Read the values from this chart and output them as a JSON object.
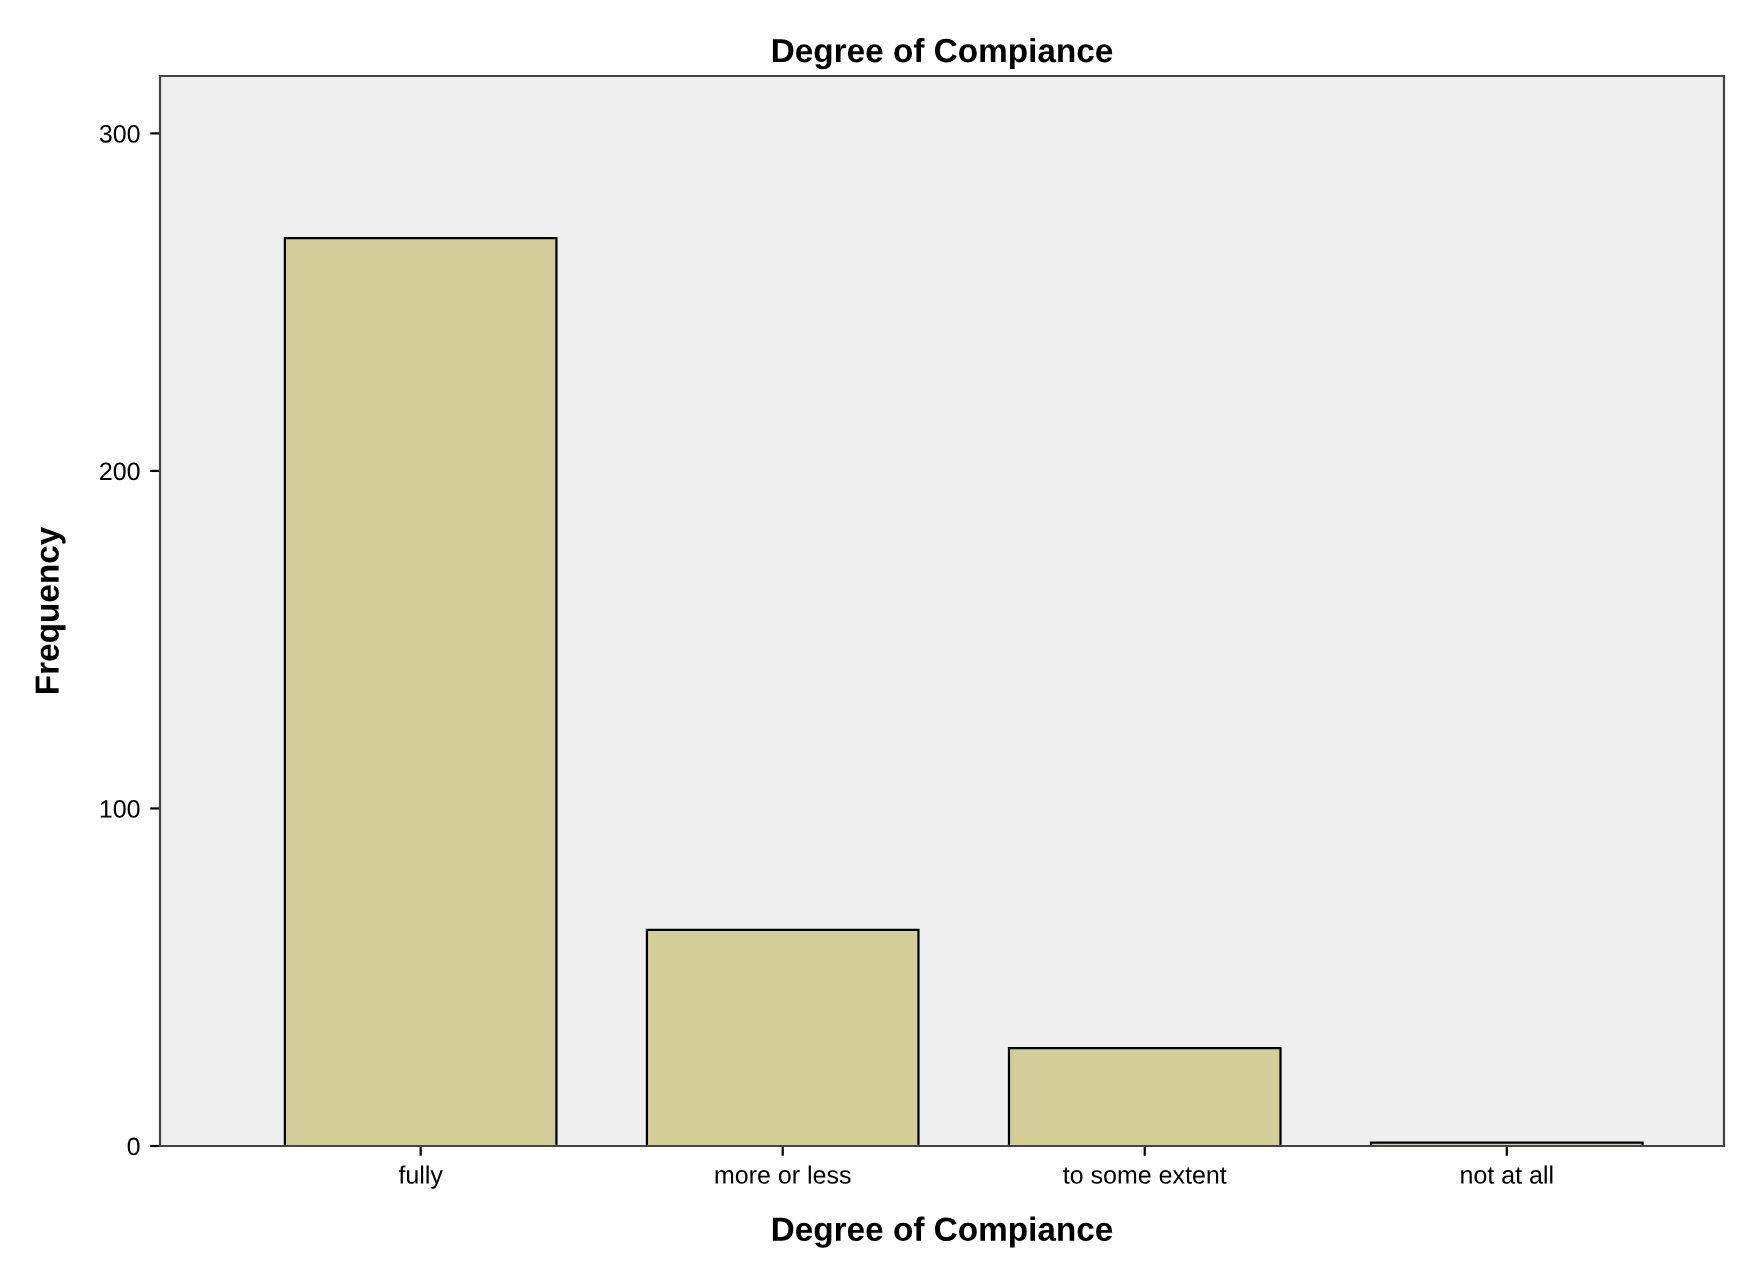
{
  "chart_data": {
    "type": "bar",
    "title": "Degree of Compiance",
    "xlabel": "Degree of Compiance",
    "ylabel": "Frequency",
    "categories": [
      "fully",
      "more or less",
      "to some extent",
      "not at all"
    ],
    "values": [
      269,
      64,
      29,
      1
    ],
    "color": "#d3ce97",
    "ylim": [
      0,
      317
    ],
    "yticks": [
      0,
      100,
      200,
      300
    ],
    "grid": false,
    "legend": false
  }
}
